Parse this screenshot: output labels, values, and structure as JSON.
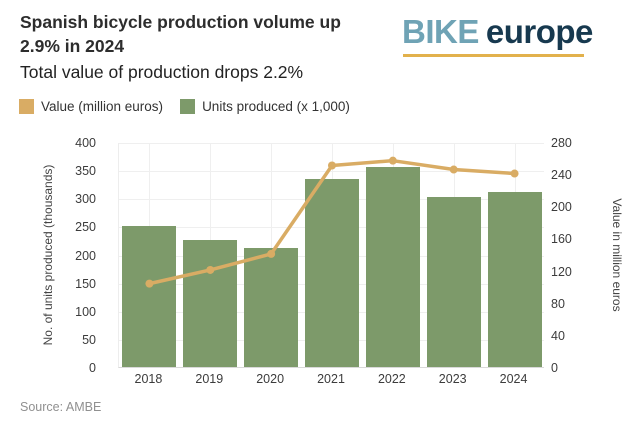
{
  "header": {
    "title_line1": "Spanish bicycle production volume up",
    "title_line2": "2.9% in 2024",
    "subtitle": "Total value of production drops 2.2%"
  },
  "logo": {
    "part1": "BIKE",
    "part2": "europe",
    "part1_color": "#6FA3B5",
    "part2_color": "#17394F",
    "underline_color": "#E2B14C"
  },
  "legend": [
    {
      "label": "Value (million euros)",
      "color": "#D9AC64"
    },
    {
      "label": "Units produced (x 1,000)",
      "color": "#7D9A6A"
    }
  ],
  "source": "Source: AMBE",
  "chart_data": {
    "type": "bar",
    "categories": [
      "2018",
      "2019",
      "2020",
      "2021",
      "2022",
      "2023",
      "2024"
    ],
    "series": [
      {
        "name": "Units produced (x 1,000)",
        "type": "bar",
        "axis": "left",
        "color": "#7D9A6A",
        "values": [
          250,
          226,
          212,
          335,
          355,
          303,
          312
        ]
      },
      {
        "name": "Value (million euros)",
        "type": "line",
        "axis": "right",
        "color": "#D9AC64",
        "values": [
          105,
          122,
          142,
          252,
          258,
          247,
          242
        ]
      }
    ],
    "left_axis": {
      "label": "No. of units produced (thousands)",
      "min": 0,
      "max": 400,
      "step": 50
    },
    "right_axis": {
      "label": "Value in million euros",
      "min": 0,
      "max": 280,
      "step": 40
    },
    "grid": true,
    "legend_position": "top-left"
  }
}
